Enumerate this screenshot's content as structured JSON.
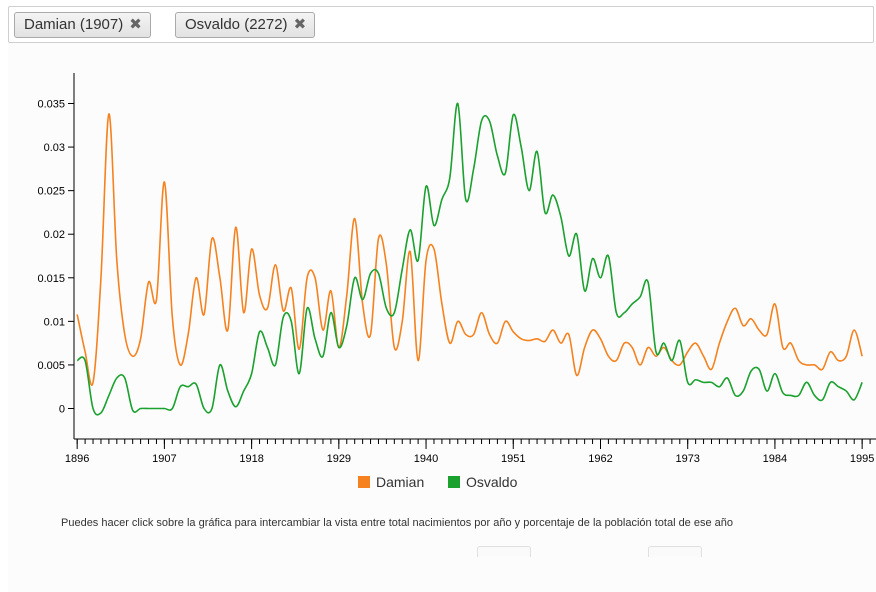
{
  "tags": [
    {
      "label": "Damian (1907)"
    },
    {
      "label": "Osvaldo (2272)"
    }
  ],
  "close_glyph": "✖",
  "note": "Puedes hacer click sobre la gráfica para intercambiar la vista entre total nacimientos por año y porcentaje de la población total de ese año",
  "chart_data": {
    "type": "line",
    "x_ticks": [
      "1896",
      "1907",
      "1918",
      "1929",
      "1940",
      "1951",
      "1962",
      "1973",
      "1984",
      "1995"
    ],
    "y_ticks": [
      "0",
      "0.005",
      "0.01",
      "0.015",
      "0.02",
      "0.025",
      "0.03",
      "0.035"
    ],
    "xlim": [
      1895.6,
      1997
    ],
    "ylim": [
      -0.0035,
      0.0385
    ],
    "series": [
      {
        "name": "Damian",
        "color": "#f5821f",
        "points": [
          [
            1896,
            0.0108
          ],
          [
            1897,
            0.0065
          ],
          [
            1898,
            0.003
          ],
          [
            1899,
            0.015
          ],
          [
            1900,
            0.0338
          ],
          [
            1901,
            0.017
          ],
          [
            1902,
            0.0085
          ],
          [
            1903,
            0.006
          ],
          [
            1904,
            0.008
          ],
          [
            1905,
            0.0145
          ],
          [
            1906,
            0.0125
          ],
          [
            1907,
            0.026
          ],
          [
            1908,
            0.0105
          ],
          [
            1909,
            0.005
          ],
          [
            1910,
            0.0085
          ],
          [
            1911,
            0.015
          ],
          [
            1912,
            0.0108
          ],
          [
            1913,
            0.0195
          ],
          [
            1914,
            0.015
          ],
          [
            1915,
            0.009
          ],
          [
            1916,
            0.0208
          ],
          [
            1917,
            0.011
          ],
          [
            1918,
            0.0183
          ],
          [
            1919,
            0.013
          ],
          [
            1920,
            0.0115
          ],
          [
            1921,
            0.0165
          ],
          [
            1922,
            0.0112
          ],
          [
            1923,
            0.0138
          ],
          [
            1924,
            0.0068
          ],
          [
            1925,
            0.015
          ],
          [
            1926,
            0.015
          ],
          [
            1927,
            0.009
          ],
          [
            1928,
            0.0135
          ],
          [
            1929,
            0.007
          ],
          [
            1930,
            0.013
          ],
          [
            1931,
            0.0218
          ],
          [
            1932,
            0.012
          ],
          [
            1933,
            0.0085
          ],
          [
            1934,
            0.0195
          ],
          [
            1935,
            0.0165
          ],
          [
            1936,
            0.007
          ],
          [
            1937,
            0.01
          ],
          [
            1938,
            0.018
          ],
          [
            1939,
            0.0055
          ],
          [
            1940,
            0.017
          ],
          [
            1941,
            0.0183
          ],
          [
            1942,
            0.012
          ],
          [
            1943,
            0.0075
          ],
          [
            1944,
            0.01
          ],
          [
            1945,
            0.0085
          ],
          [
            1946,
            0.0085
          ],
          [
            1947,
            0.011
          ],
          [
            1948,
            0.0085
          ],
          [
            1949,
            0.0075
          ],
          [
            1950,
            0.01
          ],
          [
            1951,
            0.0088
          ],
          [
            1952,
            0.008
          ],
          [
            1953,
            0.0078
          ],
          [
            1954,
            0.008
          ],
          [
            1955,
            0.0077
          ],
          [
            1956,
            0.009
          ],
          [
            1957,
            0.0075
          ],
          [
            1958,
            0.0085
          ],
          [
            1959,
            0.0038
          ],
          [
            1960,
            0.007
          ],
          [
            1961,
            0.009
          ],
          [
            1962,
            0.008
          ],
          [
            1963,
            0.006
          ],
          [
            1964,
            0.0055
          ],
          [
            1965,
            0.0075
          ],
          [
            1966,
            0.007
          ],
          [
            1967,
            0.005
          ],
          [
            1968,
            0.007
          ],
          [
            1969,
            0.006
          ],
          [
            1970,
            0.007
          ],
          [
            1971,
            0.0055
          ],
          [
            1972,
            0.005
          ],
          [
            1973,
            0.0065
          ],
          [
            1974,
            0.0075
          ],
          [
            1975,
            0.006
          ],
          [
            1976,
            0.0045
          ],
          [
            1977,
            0.0075
          ],
          [
            1978,
            0.01
          ],
          [
            1979,
            0.0115
          ],
          [
            1980,
            0.0095
          ],
          [
            1981,
            0.0103
          ],
          [
            1982,
            0.009
          ],
          [
            1983,
            0.0085
          ],
          [
            1984,
            0.012
          ],
          [
            1985,
            0.007
          ],
          [
            1986,
            0.0075
          ],
          [
            1987,
            0.0055
          ],
          [
            1988,
            0.005
          ],
          [
            1989,
            0.005
          ],
          [
            1990,
            0.0045
          ],
          [
            1991,
            0.0065
          ],
          [
            1992,
            0.0055
          ],
          [
            1993,
            0.006
          ],
          [
            1994,
            0.009
          ],
          [
            1995,
            0.006
          ]
        ]
      },
      {
        "name": "Osvaldo",
        "color": "#1aa12e",
        "points": [
          [
            1896,
            0.0055
          ],
          [
            1897,
            0.0055
          ],
          [
            1898,
            0.0
          ],
          [
            1899,
            -0.0005
          ],
          [
            1900,
            0.0015
          ],
          [
            1901,
            0.0035
          ],
          [
            1902,
            0.0035
          ],
          [
            1903,
            -0.0002
          ],
          [
            1904,
            0.0
          ],
          [
            1905,
            0.0
          ],
          [
            1906,
            0.0
          ],
          [
            1907,
            0.0
          ],
          [
            1908,
            0.0
          ],
          [
            1909,
            0.0025
          ],
          [
            1910,
            0.0025
          ],
          [
            1911,
            0.0028
          ],
          [
            1912,
            0.0
          ],
          [
            1913,
            0.0
          ],
          [
            1914,
            0.005
          ],
          [
            1915,
            0.002
          ],
          [
            1916,
            0.0002
          ],
          [
            1917,
            0.002
          ],
          [
            1918,
            0.004
          ],
          [
            1919,
            0.0088
          ],
          [
            1920,
            0.007
          ],
          [
            1921,
            0.005
          ],
          [
            1922,
            0.0105
          ],
          [
            1923,
            0.01
          ],
          [
            1924,
            0.004
          ],
          [
            1925,
            0.0115
          ],
          [
            1926,
            0.008
          ],
          [
            1927,
            0.006
          ],
          [
            1928,
            0.011
          ],
          [
            1929,
            0.007
          ],
          [
            1930,
            0.0095
          ],
          [
            1931,
            0.015
          ],
          [
            1932,
            0.0125
          ],
          [
            1933,
            0.0155
          ],
          [
            1934,
            0.0155
          ],
          [
            1935,
            0.0115
          ],
          [
            1936,
            0.011
          ],
          [
            1937,
            0.016
          ],
          [
            1938,
            0.0205
          ],
          [
            1939,
            0.017
          ],
          [
            1940,
            0.0255
          ],
          [
            1941,
            0.021
          ],
          [
            1942,
            0.024
          ],
          [
            1943,
            0.0265
          ],
          [
            1944,
            0.035
          ],
          [
            1945,
            0.024
          ],
          [
            1946,
            0.0275
          ],
          [
            1947,
            0.033
          ],
          [
            1948,
            0.033
          ],
          [
            1949,
            0.029
          ],
          [
            1950,
            0.027
          ],
          [
            1951,
            0.0337
          ],
          [
            1952,
            0.03
          ],
          [
            1953,
            0.025
          ],
          [
            1954,
            0.0295
          ],
          [
            1955,
            0.0225
          ],
          [
            1956,
            0.0245
          ],
          [
            1957,
            0.022
          ],
          [
            1958,
            0.0175
          ],
          [
            1959,
            0.02
          ],
          [
            1960,
            0.0135
          ],
          [
            1961,
            0.0172
          ],
          [
            1962,
            0.015
          ],
          [
            1963,
            0.0175
          ],
          [
            1964,
            0.011
          ],
          [
            1965,
            0.011
          ],
          [
            1966,
            0.012
          ],
          [
            1967,
            0.0128
          ],
          [
            1968,
            0.0145
          ],
          [
            1969,
            0.0065
          ],
          [
            1970,
            0.0075
          ],
          [
            1971,
            0.0055
          ],
          [
            1972,
            0.0078
          ],
          [
            1973,
            0.003
          ],
          [
            1974,
            0.0033
          ],
          [
            1975,
            0.003
          ],
          [
            1976,
            0.003
          ],
          [
            1977,
            0.0025
          ],
          [
            1978,
            0.0035
          ],
          [
            1979,
            0.0015
          ],
          [
            1980,
            0.002
          ],
          [
            1981,
            0.0043
          ],
          [
            1982,
            0.0045
          ],
          [
            1983,
            0.002
          ],
          [
            1984,
            0.004
          ],
          [
            1985,
            0.0018
          ],
          [
            1986,
            0.0015
          ],
          [
            1987,
            0.0015
          ],
          [
            1988,
            0.003
          ],
          [
            1989,
            0.0015
          ],
          [
            1990,
            0.001
          ],
          [
            1991,
            0.003
          ],
          [
            1992,
            0.0025
          ],
          [
            1993,
            0.002
          ],
          [
            1994,
            0.001
          ],
          [
            1995,
            0.003
          ]
        ]
      }
    ]
  }
}
